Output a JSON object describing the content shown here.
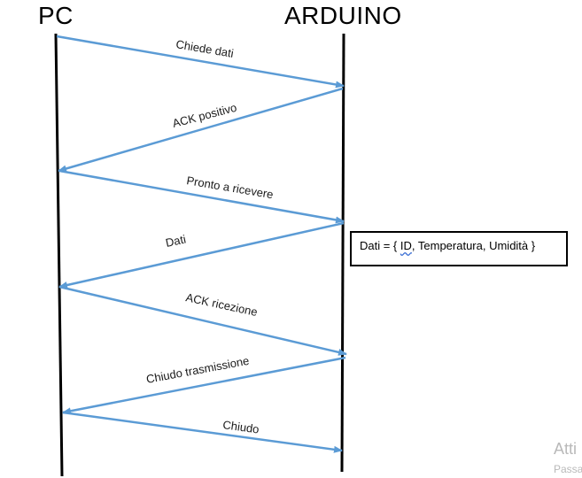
{
  "actors": {
    "left": "PC",
    "right": "ARDUINO"
  },
  "messages": [
    {
      "label": "Chiede dati",
      "direction": "right"
    },
    {
      "label": "ACK positivo",
      "direction": "left"
    },
    {
      "label": "Pronto a ricevere",
      "direction": "right"
    },
    {
      "label": "Dati",
      "direction": "left"
    },
    {
      "label": "ACK ricezione",
      "direction": "right"
    },
    {
      "label": "Chiudo trasmissione",
      "direction": "left"
    },
    {
      "label": "Chiudo",
      "direction": "right"
    }
  ],
  "note": {
    "prefix": "Dati = { ",
    "underlined": "ID",
    "suffix": ", Temperatura, Umidità }"
  },
  "watermark": {
    "line1": "Atti",
    "line2": "Passa"
  },
  "colors": {
    "arrow": "#5b9bd5",
    "lifeline": "#000000",
    "note_border": "#000000"
  }
}
